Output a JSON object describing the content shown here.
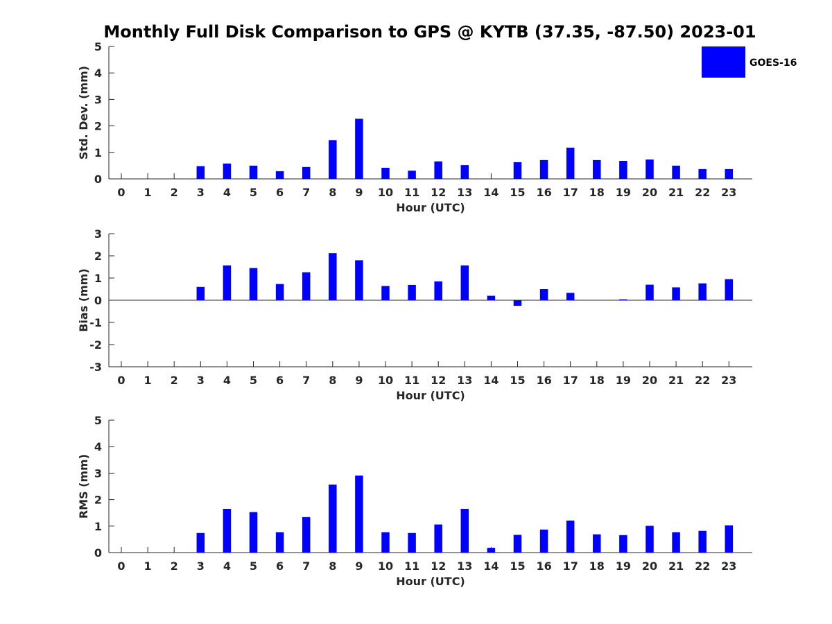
{
  "title": "Monthly Full Disk Comparison to GPS @ KYTB (37.35, -87.50) 2023-01",
  "legend": {
    "label": "GOES-16",
    "color": "#0000ff",
    "position": "top-right"
  },
  "chart_data": [
    {
      "type": "bar",
      "xlabel": "Hour (UTC)",
      "ylabel": "Std. Dev. (mm)",
      "ylim": [
        0,
        5
      ],
      "yticks": [
        "0",
        "1",
        "2",
        "3",
        "4",
        "5"
      ],
      "categories": [
        "0",
        "1",
        "2",
        "3",
        "4",
        "5",
        "6",
        "7",
        "8",
        "9",
        "10",
        "11",
        "12",
        "13",
        "14",
        "15",
        "16",
        "17",
        "18",
        "19",
        "20",
        "21",
        "22",
        "23"
      ],
      "series": [
        {
          "name": "GOES-16",
          "color": "#0000ff",
          "values": [
            null,
            null,
            null,
            0.48,
            0.58,
            0.5,
            0.29,
            0.45,
            1.46,
            2.27,
            0.42,
            0.31,
            0.66,
            0.52,
            null,
            0.63,
            0.71,
            1.18,
            0.71,
            0.68,
            0.73,
            0.5,
            0.37,
            0.37
          ]
        }
      ]
    },
    {
      "type": "bar",
      "xlabel": "Hour (UTC)",
      "ylabel": "Bias (mm)",
      "ylim": [
        -3,
        3
      ],
      "yticks": [
        "-3",
        "-2",
        "-1",
        "0",
        "1",
        "2",
        "3"
      ],
      "categories": [
        "0",
        "1",
        "2",
        "3",
        "4",
        "5",
        "6",
        "7",
        "8",
        "9",
        "10",
        "11",
        "12",
        "13",
        "14",
        "15",
        "16",
        "17",
        "18",
        "19",
        "20",
        "21",
        "22",
        "23"
      ],
      "series": [
        {
          "name": "GOES-16",
          "color": "#0000ff",
          "values": [
            null,
            null,
            null,
            0.6,
            1.57,
            1.45,
            0.73,
            1.26,
            2.12,
            1.8,
            0.64,
            0.69,
            0.85,
            1.57,
            0.2,
            -0.25,
            0.5,
            0.33,
            null,
            0.04,
            0.7,
            0.58,
            0.76,
            0.95
          ]
        }
      ]
    },
    {
      "type": "bar",
      "xlabel": "Hour (UTC)",
      "ylabel": "RMS (mm)",
      "ylim": [
        0,
        5
      ],
      "yticks": [
        "0",
        "1",
        "2",
        "3",
        "4",
        "5"
      ],
      "categories": [
        "0",
        "1",
        "2",
        "3",
        "4",
        "5",
        "6",
        "7",
        "8",
        "9",
        "10",
        "11",
        "12",
        "13",
        "14",
        "15",
        "16",
        "17",
        "18",
        "19",
        "20",
        "21",
        "22",
        "23"
      ],
      "series": [
        {
          "name": "GOES-16",
          "color": "#0000ff",
          "values": [
            null,
            null,
            null,
            0.74,
            1.65,
            1.53,
            0.77,
            1.34,
            2.57,
            2.91,
            0.77,
            0.74,
            1.06,
            1.65,
            0.18,
            0.67,
            0.87,
            1.21,
            0.69,
            0.66,
            1.01,
            0.77,
            0.82,
            1.03
          ]
        }
      ]
    }
  ]
}
